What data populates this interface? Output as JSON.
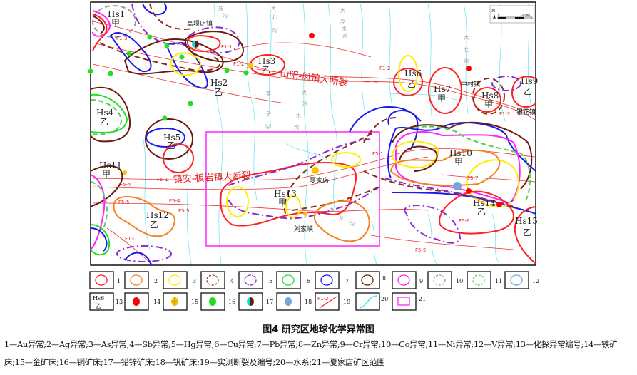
{
  "figure": {
    "caption": "图4  研究区地球化学异常图",
    "note": "1—Au异常;2—Ag异常;3—As异常;4—Sb异常;5—Hg异常;6—Cu异常;7—Pb异常;8—Zn异常;9—Cr异常;10—Co异常;11—Ni异常;12—V异常;13—化探异常编号;14—铁矿床;15—金矿床;16—铜矿床;17—铅锌矿床;18—钒矿床;19—实测断裂及编号;20—水系;21—夏家店矿区范围"
  },
  "scale": {
    "north": "N",
    "zero": "0",
    "length": "1500m"
  },
  "anomalies": [
    {
      "id": "Hs1",
      "grade": "甲"
    },
    {
      "id": "Hs2",
      "grade": "乙"
    },
    {
      "id": "Hs3",
      "grade": "乙"
    },
    {
      "id": "Hs4",
      "grade": "乙"
    },
    {
      "id": "Hs5",
      "grade": "乙"
    },
    {
      "id": "Hs6",
      "grade": "乙"
    },
    {
      "id": "Hs7",
      "grade": "甲"
    },
    {
      "id": "Hs8",
      "grade": "甲"
    },
    {
      "id": "Hs9",
      "grade": "乙"
    },
    {
      "id": "Hs10",
      "grade": "甲"
    },
    {
      "id": "Hs11",
      "grade": "甲"
    },
    {
      "id": "Hs12",
      "grade": "乙"
    },
    {
      "id": "Hs13",
      "grade": "甲"
    },
    {
      "id": "Hs14",
      "grade": "乙"
    },
    {
      "id": "Hs15",
      "grade": "乙"
    }
  ],
  "places": {
    "gaobadian": "高坝店镇",
    "zhongcun": "中村镇",
    "yinhua": "银花镇",
    "xiajiadian": "夏家店",
    "liujiaxia": "刘家峡"
  },
  "major_faults": {
    "shanyang": "山阳-凤镇大断裂",
    "zhenan": "镇安-板岩镇大断裂"
  },
  "fault_labels": [
    "F1-3",
    "F1-1",
    "F1-2",
    "F1-2",
    "F1-2",
    "F5-1",
    "F5-4",
    "F5-5",
    "F5-4",
    "F5-5",
    "F13",
    "F5-1",
    "F5-7",
    "F5-6",
    "F5-5"
  ],
  "rivers": [
    "庙",
    "沟",
    "大",
    "北",
    "沟",
    "大",
    "冷",
    "水",
    "沟",
    "大",
    "北",
    "沟",
    "寨",
    "子",
    "沟",
    "大",
    "冷",
    "水",
    "沟",
    "九",
    "龙",
    "沟"
  ],
  "legend": {
    "items": [
      {
        "num": "1",
        "color": "#ff2020",
        "style": "solid"
      },
      {
        "num": "2",
        "color": "#f5821f",
        "style": "solid"
      },
      {
        "num": "3",
        "color": "#ffee00",
        "style": "solid"
      },
      {
        "num": "4",
        "color": "#8b2a1a",
        "style": "dashed"
      },
      {
        "num": "5",
        "color": "#8b2ad0",
        "style": "dashdot"
      },
      {
        "num": "6",
        "color": "#22dd22",
        "style": "solid"
      },
      {
        "num": "7",
        "color": "#1a1aee",
        "style": "solid"
      },
      {
        "num": "8",
        "color": "#6b1a10",
        "style": "solid"
      },
      {
        "num": "9",
        "color": "#ff22ff",
        "style": "solid"
      },
      {
        "num": "10",
        "color": "#999999",
        "style": "dashed"
      },
      {
        "num": "11",
        "color": "#55cc55",
        "style": "dashed"
      },
      {
        "num": "12",
        "color": "#6fa8dc",
        "style": "solid"
      }
    ],
    "symbols": [
      {
        "num": "13",
        "id": "Hs6",
        "grade": "乙"
      },
      {
        "num": "14",
        "color": "#ff0000"
      },
      {
        "num": "15",
        "color": "#f5c400"
      },
      {
        "num": "16",
        "color": "#22dd22"
      },
      {
        "num": "17",
        "color": "#00e0e0"
      },
      {
        "num": "18",
        "color": "#6fa8dc"
      },
      {
        "num": "19",
        "label": "F1-2",
        "color": "#ff2020"
      },
      {
        "num": "20",
        "color": "#33e0f0"
      },
      {
        "num": "21",
        "color": "#ff22ff"
      }
    ]
  }
}
